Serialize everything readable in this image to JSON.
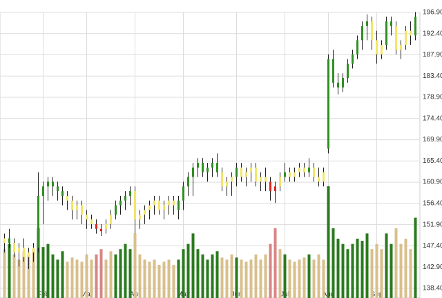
{
  "chart_data": {
    "type": "ohlc",
    "categories": [
      null,
      null,
      null,
      null,
      null,
      null,
      null,
      null,
      "Feb",
      null,
      null,
      null,
      null,
      null,
      null,
      null,
      null,
      "Mar",
      null,
      null,
      null,
      null,
      null,
      null,
      null,
      null,
      null,
      "Apr",
      null,
      null,
      null,
      null,
      null,
      null,
      null,
      null,
      null,
      "May",
      null,
      null,
      null,
      null,
      null,
      null,
      null,
      null,
      null,
      null,
      "Jun",
      null,
      null,
      null,
      null,
      null,
      null,
      null,
      null,
      null,
      "Jul",
      null,
      null,
      null,
      null,
      null,
      null,
      null,
      null,
      "Aug",
      null,
      null,
      null,
      null,
      null,
      null,
      null,
      null,
      null,
      "Sep",
      null,
      null,
      null,
      null,
      null,
      null,
      null,
      null
    ],
    "open": [
      148,
      149,
      148,
      146,
      147,
      145,
      146,
      147,
      158,
      160,
      161,
      160,
      159,
      158,
      157,
      155,
      156,
      154,
      153,
      152,
      151,
      151,
      152,
      154,
      156,
      157,
      158,
      159,
      153,
      154,
      155,
      156,
      157,
      155,
      156,
      157,
      155,
      157,
      160,
      162,
      164,
      165,
      163,
      164,
      165,
      163,
      160,
      161,
      162,
      164,
      162,
      163,
      164,
      161,
      162,
      161,
      159,
      160,
      162,
      163,
      162,
      163,
      164,
      163,
      164,
      162,
      161,
      168,
      187,
      182,
      181,
      183,
      186,
      188,
      191,
      194,
      195,
      191,
      188,
      190,
      195,
      194,
      189,
      190,
      193,
      192
    ],
    "high": [
      150,
      151,
      149,
      148,
      149,
      147,
      148,
      163,
      161,
      162,
      162,
      161,
      160,
      159,
      158,
      157,
      157,
      155,
      154,
      153,
      152,
      153,
      155,
      157,
      158,
      159,
      160,
      160,
      155,
      156,
      157,
      158,
      158,
      157,
      158,
      158,
      158,
      161,
      163,
      165,
      166,
      166,
      165,
      166,
      167,
      164,
      162,
      163,
      165,
      165,
      164,
      165,
      165,
      163,
      164,
      162,
      161,
      163,
      165,
      164,
      164,
      165,
      165,
      166,
      165,
      164,
      164,
      188,
      189,
      184,
      184,
      187,
      189,
      192,
      195,
      196.5,
      196,
      193,
      191,
      196,
      196,
      195,
      191,
      194,
      195,
      197
    ],
    "low": [
      146,
      147,
      145,
      143,
      144,
      142.5,
      144,
      146,
      152,
      157,
      158,
      157,
      156,
      155,
      153,
      153,
      152,
      151,
      151,
      150,
      149.5,
      150,
      151,
      153,
      154,
      155,
      156,
      150,
      151,
      152,
      153,
      154,
      154,
      153,
      154,
      154,
      153,
      155,
      158,
      158,
      162,
      162,
      161,
      162,
      162,
      159,
      158,
      158,
      160,
      161,
      160,
      161,
      160,
      159,
      159,
      157,
      156.5,
      159,
      161,
      161,
      161,
      162,
      162,
      162,
      161,
      160,
      160,
      167,
      181,
      179.5,
      180,
      182,
      185,
      187,
      189,
      191,
      189,
      186,
      187,
      189,
      192,
      188,
      187,
      189,
      190,
      191
    ],
    "close": [
      149,
      148,
      146,
      147,
      145,
      146,
      147,
      158,
      160,
      161,
      160,
      159,
      158,
      157,
      155,
      156,
      154,
      153,
      152,
      151,
      150.5,
      152,
      154,
      156,
      157,
      158,
      159,
      153,
      154,
      155,
      156,
      157,
      155,
      156,
      157,
      156,
      157,
      160,
      162,
      164,
      165,
      163,
      164,
      165,
      163,
      160,
      161,
      162,
      164,
      162,
      163,
      164,
      161,
      162,
      161,
      159,
      160,
      162,
      163,
      162,
      163,
      164,
      163,
      164,
      162,
      161,
      163,
      187,
      182,
      181,
      183,
      186,
      188,
      191,
      194,
      195,
      191,
      188,
      190,
      195,
      194,
      189,
      190,
      193,
      192,
      196
    ],
    "volume": [
      40,
      45,
      35,
      30,
      38,
      35,
      40,
      60,
      42,
      45,
      35,
      30,
      38,
      28,
      32,
      30,
      28,
      35,
      30,
      35,
      40,
      30,
      38,
      35,
      40,
      45,
      40,
      55,
      35,
      30,
      28,
      30,
      25,
      28,
      30,
      25,
      30,
      40,
      45,
      55,
      40,
      35,
      30,
      35,
      38,
      32,
      30,
      35,
      32,
      30,
      28,
      30,
      35,
      30,
      35,
      45,
      60,
      40,
      35,
      30,
      28,
      30,
      32,
      35,
      30,
      35,
      30,
      100,
      60,
      50,
      45,
      40,
      45,
      50,
      48,
      55,
      40,
      45,
      40,
      55,
      45,
      60,
      45,
      50,
      40,
      70
    ],
    "trend": [
      "flat",
      "up",
      "flat",
      "flat",
      "flat",
      "flat",
      "flat",
      "up",
      "up",
      "up",
      "up",
      "up",
      "up",
      "flat",
      "flat",
      "flat",
      "flat",
      "flat",
      "flat",
      "down",
      "down",
      "flat",
      "flat",
      "up",
      "up",
      "up",
      "up",
      "flat",
      "flat",
      "flat",
      "flat",
      "flat",
      "flat",
      "flat",
      "flat",
      "flat",
      "up",
      "up",
      "up",
      "up",
      "up",
      "up",
      "up",
      "up",
      "up",
      "flat",
      "flat",
      "flat",
      "up",
      "flat",
      "flat",
      "flat",
      "flat",
      "flat",
      "flat",
      "down",
      "down",
      "flat",
      "up",
      "flat",
      "flat",
      "flat",
      "flat",
      "up",
      "flat",
      "flat",
      "flat",
      "up",
      "up",
      "up",
      "up",
      "up",
      "up",
      "up",
      "up",
      "up",
      "flat",
      "flat",
      "flat",
      "up",
      "up",
      "flat",
      "flat",
      "flat",
      "flat",
      "up"
    ],
    "body_colors": {
      "up": "#2f8f22",
      "flat": "#f3e66a",
      "down": "#e0231b"
    },
    "volume_colors": {
      "up": "#2a7a1e",
      "flat": "#d8bf8c",
      "down": "#d98585"
    },
    "ylim": [
      137.8,
      196.9
    ],
    "yticks": [
      {
        "value": 196.9,
        "label": "196.90"
      },
      {
        "value": 192.4,
        "label": "192.40"
      },
      {
        "value": 187.9,
        "label": "187.90"
      },
      {
        "value": 183.4,
        "label": "183.40"
      },
      {
        "value": 178.9,
        "label": "178.90"
      },
      {
        "value": 174.4,
        "label": "174.40"
      },
      {
        "value": 169.9,
        "label": "169.90"
      },
      {
        "value": 165.4,
        "label": "165.40"
      },
      {
        "value": 160.9,
        "label": "160.90"
      },
      {
        "value": 156.4,
        "label": "156.40"
      },
      {
        "value": 151.9,
        "label": "151.90"
      },
      {
        "value": 147.4,
        "label": "147.40"
      },
      {
        "value": 142.9,
        "label": "142.90"
      },
      {
        "value": 138.4,
        "label": "138.40"
      }
    ],
    "y2lim": [
      0,
      100
    ],
    "grid": true
  }
}
